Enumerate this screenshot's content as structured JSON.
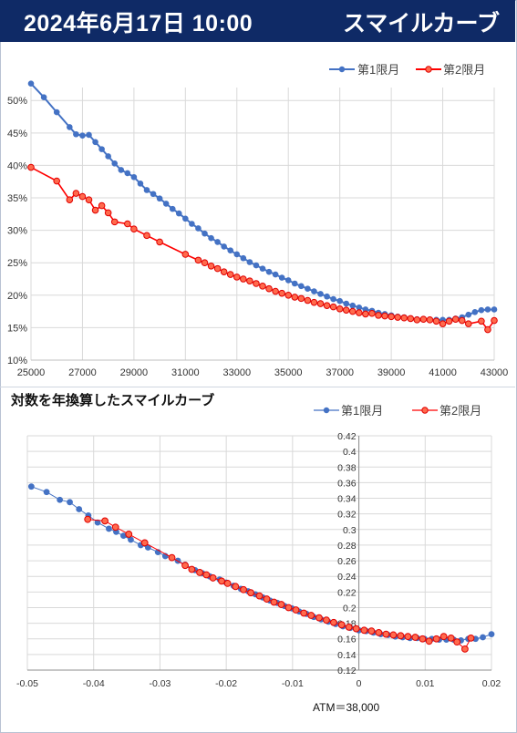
{
  "header": {
    "date": "2024年6月17日 10:00",
    "title": "スマイルカーブ"
  },
  "colors": {
    "header_bg": "#0f2a66",
    "series1": "#4472c4",
    "series2": "#ff0000",
    "series2_marker": "#ff6a4d"
  },
  "chart_data": [
    {
      "type": "line",
      "title": "",
      "xlabel": "",
      "ylabel": "",
      "xlim": [
        25000,
        43000
      ],
      "ylim": [
        10,
        52
      ],
      "x_ticks": [
        "25000",
        "27000",
        "29000",
        "31000",
        "33000",
        "35000",
        "37000",
        "39000",
        "41000",
        "43000"
      ],
      "y_ticks": [
        "10%",
        "15%",
        "20%",
        "25%",
        "30%",
        "35%",
        "40%",
        "45%",
        "50%"
      ],
      "legend": "top-right",
      "grid": true,
      "series": [
        {
          "name": "第1限月",
          "points": [
            [
              25000,
              52.6
            ],
            [
              25500,
              50.5
            ],
            [
              26000,
              48.2
            ],
            [
              26500,
              45.9
            ],
            [
              26750,
              44.8
            ],
            [
              27000,
              44.6
            ],
            [
              27250,
              44.7
            ],
            [
              27500,
              43.6
            ],
            [
              27750,
              42.5
            ],
            [
              28000,
              41.4
            ],
            [
              28250,
              40.3
            ],
            [
              28500,
              39.3
            ],
            [
              28750,
              38.8
            ],
            [
              29000,
              38.2
            ],
            [
              29250,
              37.2
            ],
            [
              29500,
              36.2
            ],
            [
              29750,
              35.6
            ],
            [
              30000,
              34.9
            ],
            [
              30250,
              34.1
            ],
            [
              30500,
              33.3
            ],
            [
              30750,
              32.6
            ],
            [
              31000,
              31.8
            ],
            [
              31250,
              31.0
            ],
            [
              31500,
              30.3
            ],
            [
              31750,
              29.5
            ],
            [
              32000,
              28.8
            ],
            [
              32250,
              28.2
            ],
            [
              32500,
              27.5
            ],
            [
              32750,
              26.9
            ],
            [
              33000,
              26.3
            ],
            [
              33250,
              25.7
            ],
            [
              33500,
              25.1
            ],
            [
              33750,
              24.6
            ],
            [
              34000,
              24.1
            ],
            [
              34250,
              23.6
            ],
            [
              34500,
              23.2
            ],
            [
              34750,
              22.7
            ],
            [
              35000,
              22.3
            ],
            [
              35250,
              21.8
            ],
            [
              35500,
              21.4
            ],
            [
              35750,
              21.0
            ],
            [
              36000,
              20.6
            ],
            [
              36250,
              20.2
            ],
            [
              36500,
              19.8
            ],
            [
              36750,
              19.4
            ],
            [
              37000,
              19.1
            ],
            [
              37250,
              18.7
            ],
            [
              37500,
              18.4
            ],
            [
              37750,
              18.1
            ],
            [
              38000,
              17.8
            ],
            [
              38250,
              17.6
            ],
            [
              38500,
              17.3
            ],
            [
              38750,
              17.1
            ],
            [
              39000,
              16.9
            ],
            [
              39250,
              16.7
            ],
            [
              39500,
              16.6
            ],
            [
              39750,
              16.4
            ],
            [
              40000,
              16.3
            ],
            [
              40250,
              16.3
            ],
            [
              40500,
              16.2
            ],
            [
              40750,
              16.2
            ],
            [
              41000,
              16.2
            ],
            [
              41250,
              16.2
            ],
            [
              41500,
              16.4
            ],
            [
              41750,
              16.6
            ],
            [
              42000,
              17.0
            ],
            [
              42250,
              17.4
            ],
            [
              42500,
              17.7
            ],
            [
              42750,
              17.8
            ],
            [
              43000,
              17.8
            ]
          ]
        },
        {
          "name": "第2限月",
          "points": [
            [
              25000,
              39.7
            ],
            [
              26000,
              37.6
            ],
            [
              26500,
              34.7
            ],
            [
              26750,
              35.7
            ],
            [
              27000,
              35.2
            ],
            [
              27250,
              34.7
            ],
            [
              27500,
              33.1
            ],
            [
              27750,
              33.8
            ],
            [
              28000,
              32.7
            ],
            [
              28250,
              31.3
            ],
            [
              28750,
              31.0
            ],
            [
              29000,
              30.2
            ],
            [
              29500,
              29.2
            ],
            [
              30000,
              28.2
            ],
            [
              31000,
              26.3
            ],
            [
              31500,
              25.4
            ],
            [
              31750,
              25.0
            ],
            [
              32000,
              24.5
            ],
            [
              32250,
              24.1
            ],
            [
              32500,
              23.6
            ],
            [
              32750,
              23.2
            ],
            [
              33000,
              22.8
            ],
            [
              33250,
              22.5
            ],
            [
              33500,
              22.2
            ],
            [
              33750,
              21.8
            ],
            [
              34000,
              21.4
            ],
            [
              34250,
              21.0
            ],
            [
              34500,
              20.6
            ],
            [
              34750,
              20.3
            ],
            [
              35000,
              20.0
            ],
            [
              35250,
              19.7
            ],
            [
              35500,
              19.5
            ],
            [
              35750,
              19.2
            ],
            [
              36000,
              18.9
            ],
            [
              36250,
              18.7
            ],
            [
              36500,
              18.4
            ],
            [
              36750,
              18.2
            ],
            [
              37000,
              17.9
            ],
            [
              37250,
              17.7
            ],
            [
              37500,
              17.5
            ],
            [
              37750,
              17.3
            ],
            [
              38000,
              17.1
            ],
            [
              38250,
              17.2
            ],
            [
              38500,
              16.9
            ],
            [
              38750,
              16.8
            ],
            [
              39000,
              16.7
            ],
            [
              39250,
              16.6
            ],
            [
              39500,
              16.5
            ],
            [
              39750,
              16.4
            ],
            [
              40000,
              16.2
            ],
            [
              40250,
              16.3
            ],
            [
              40500,
              16.2
            ],
            [
              40750,
              16.0
            ],
            [
              41000,
              15.6
            ],
            [
              41250,
              16.0
            ],
            [
              41500,
              16.3
            ],
            [
              41750,
              16.1
            ],
            [
              42000,
              15.6
            ],
            [
              42500,
              16.0
            ],
            [
              42750,
              14.7
            ],
            [
              43000,
              16.1
            ]
          ]
        }
      ]
    },
    {
      "type": "scatter",
      "title": "対数を年換算したスマイルカーブ",
      "xlabel": "",
      "ylabel": "",
      "annotation": "ATM＝38,000",
      "xlim": [
        -0.05,
        0.02
      ],
      "ylim": [
        0.12,
        0.42
      ],
      "x_ticks": [
        "-0.05",
        "-0.04",
        "-0.03",
        "-0.02",
        "-0.01",
        "0",
        "0.01",
        "0.02"
      ],
      "y_ticks": [
        "0.12",
        "0.14",
        "0.16",
        "0.18",
        "0.2",
        "0.22",
        "0.24",
        "0.26",
        "0.28",
        "0.3",
        "0.32",
        "0.34",
        "0.36",
        "0.38",
        "0.4",
        "0.42"
      ],
      "legend": "top-right",
      "grid": true,
      "series": [
        {
          "name": "第1限月",
          "points": [
            [
              -0.0494,
              0.355
            ],
            [
              -0.0471,
              0.348
            ],
            [
              -0.0451,
              0.338
            ],
            [
              -0.0436,
              0.335
            ],
            [
              -0.0422,
              0.326
            ],
            [
              -0.0408,
              0.318
            ],
            [
              -0.0394,
              0.309
            ],
            [
              -0.0377,
              0.301
            ],
            [
              -0.0366,
              0.297
            ],
            [
              -0.0355,
              0.292
            ],
            [
              -0.0344,
              0.287
            ],
            [
              -0.0329,
              0.28
            ],
            [
              -0.0318,
              0.277
            ],
            [
              -0.0303,
              0.271
            ],
            [
              -0.0292,
              0.266
            ],
            [
              -0.0273,
              0.26
            ],
            [
              -0.0262,
              0.255
            ],
            [
              -0.0247,
              0.248
            ],
            [
              -0.0236,
              0.244
            ],
            [
              -0.0225,
              0.24
            ],
            [
              -0.021,
              0.236
            ],
            [
              -0.02,
              0.232
            ],
            [
              -0.0189,
              0.228
            ],
            [
              -0.0178,
              0.224
            ],
            [
              -0.0167,
              0.221
            ],
            [
              -0.0156,
              0.217
            ],
            [
              -0.0145,
              0.213
            ],
            [
              -0.0134,
              0.209
            ],
            [
              -0.0123,
              0.206
            ],
            [
              -0.0112,
              0.202
            ],
            [
              -0.0101,
              0.199
            ],
            [
              -0.009,
              0.195
            ],
            [
              -0.0079,
              0.192
            ],
            [
              -0.0068,
              0.188
            ],
            [
              -0.0057,
              0.185
            ],
            [
              -0.0046,
              0.182
            ],
            [
              -0.0035,
              0.179
            ],
            [
              -0.0024,
              0.176
            ],
            [
              -0.0013,
              0.174
            ],
            [
              0.0,
              0.171
            ],
            [
              0.0011,
              0.17
            ],
            [
              0.0022,
              0.168
            ],
            [
              0.0033,
              0.166
            ],
            [
              0.0044,
              0.165
            ],
            [
              0.0055,
              0.163
            ],
            [
              0.0066,
              0.162
            ],
            [
              0.0077,
              0.161
            ],
            [
              0.0088,
              0.161
            ],
            [
              0.0099,
              0.16
            ],
            [
              0.011,
              0.16
            ],
            [
              0.0121,
              0.159
            ],
            [
              0.0132,
              0.159
            ],
            [
              0.0143,
              0.159
            ],
            [
              0.0154,
              0.158
            ],
            [
              0.0165,
              0.16
            ],
            [
              0.0176,
              0.16
            ],
            [
              0.0187,
              0.162
            ],
            [
              0.02,
              0.166
            ]
          ]
        },
        {
          "name": "第2限月",
          "points": [
            [
              -0.0409,
              0.313
            ],
            [
              -0.0383,
              0.311
            ],
            [
              -0.0367,
              0.303
            ],
            [
              -0.0347,
              0.294
            ],
            [
              -0.0323,
              0.283
            ],
            [
              -0.0282,
              0.264
            ],
            [
              -0.0262,
              0.254
            ],
            [
              -0.0252,
              0.249
            ],
            [
              -0.024,
              0.245
            ],
            [
              -0.023,
              0.242
            ],
            [
              -0.022,
              0.238
            ],
            [
              -0.0207,
              0.234
            ],
            [
              -0.0198,
              0.231
            ],
            [
              -0.0186,
              0.227
            ],
            [
              -0.0174,
              0.223
            ],
            [
              -0.0163,
              0.219
            ],
            [
              -0.015,
              0.215
            ],
            [
              -0.0139,
              0.211
            ],
            [
              -0.0128,
              0.207
            ],
            [
              -0.0117,
              0.204
            ],
            [
              -0.0106,
              0.2
            ],
            [
              -0.0095,
              0.197
            ],
            [
              -0.0083,
              0.193
            ],
            [
              -0.0072,
              0.19
            ],
            [
              -0.006,
              0.187
            ],
            [
              -0.0049,
              0.184
            ],
            [
              -0.0038,
              0.181
            ],
            [
              -0.0026,
              0.178
            ],
            [
              -0.0015,
              0.175
            ],
            [
              -0.0004,
              0.173
            ],
            [
              0.0008,
              0.171
            ],
            [
              0.0019,
              0.17
            ],
            [
              0.003,
              0.168
            ],
            [
              0.0041,
              0.166
            ],
            [
              0.0052,
              0.165
            ],
            [
              0.0063,
              0.164
            ],
            [
              0.0074,
              0.163
            ],
            [
              0.0085,
              0.162
            ],
            [
              0.0096,
              0.16
            ],
            [
              0.0106,
              0.157
            ],
            [
              0.0117,
              0.16
            ],
            [
              0.0128,
              0.163
            ],
            [
              0.0139,
              0.161
            ],
            [
              0.0148,
              0.156
            ],
            [
              0.016,
              0.147
            ],
            [
              0.0169,
              0.161
            ]
          ]
        }
      ]
    }
  ]
}
